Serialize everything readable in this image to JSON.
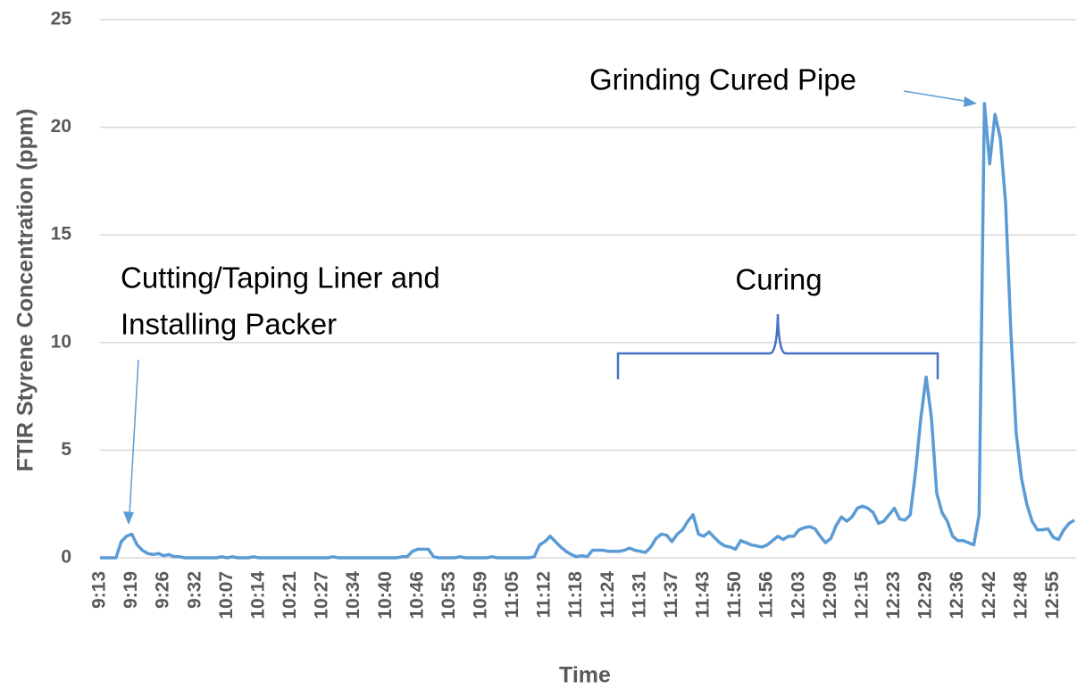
{
  "chart_data": {
    "type": "line",
    "x_label": "Time",
    "y_label": "FTIR Styrene Concentration (ppm)",
    "annotations": [
      "Grinding Cured Pipe",
      "Curing",
      "Cutting/Taping Liner and",
      "Installing Packer"
    ],
    "color": "#5b9bd5",
    "grid": true,
    "ylim": [
      0,
      25
    ],
    "yticks": [
      0,
      5,
      10,
      15,
      20,
      25
    ],
    "categories": [
      "9:13",
      null,
      null,
      null,
      null,
      null,
      "9:19",
      null,
      null,
      null,
      null,
      null,
      "9:26",
      null,
      null,
      null,
      null,
      null,
      "9:32",
      null,
      null,
      null,
      null,
      null,
      "10:07",
      null,
      null,
      null,
      null,
      null,
      "10:14",
      null,
      null,
      null,
      null,
      null,
      "10:21",
      null,
      null,
      null,
      null,
      null,
      "10:27",
      null,
      null,
      null,
      null,
      null,
      "10:34",
      null,
      null,
      null,
      null,
      null,
      "10:40",
      null,
      null,
      null,
      null,
      null,
      "10:46",
      null,
      null,
      null,
      null,
      null,
      "10:53",
      null,
      null,
      null,
      null,
      null,
      "10:59",
      null,
      null,
      null,
      null,
      null,
      "11:05",
      null,
      null,
      null,
      null,
      null,
      "11:12",
      null,
      null,
      null,
      null,
      null,
      "11:18",
      null,
      null,
      null,
      null,
      null,
      "11:24",
      null,
      null,
      null,
      null,
      null,
      "11:31",
      null,
      null,
      null,
      null,
      null,
      "11:37",
      null,
      null,
      null,
      null,
      null,
      "11:43",
      null,
      null,
      null,
      null,
      null,
      "11:50",
      null,
      null,
      null,
      null,
      null,
      "11:56",
      null,
      null,
      null,
      null,
      null,
      "12:03",
      null,
      null,
      null,
      null,
      null,
      "12:09",
      null,
      null,
      null,
      null,
      null,
      "12:15",
      null,
      null,
      null,
      null,
      null,
      "12:23",
      null,
      null,
      null,
      null,
      null,
      "12:29",
      null,
      null,
      null,
      null,
      null,
      "12:36",
      null,
      null,
      null,
      null,
      null,
      "12:42",
      null,
      null,
      null,
      null,
      null,
      "12:48",
      null,
      null,
      null,
      null,
      null,
      "12:55",
      null,
      null,
      null,
      null
    ],
    "values": [
      0,
      0,
      0,
      0,
      0.75,
      1.0,
      1.1,
      0.6,
      0.35,
      0.2,
      0.15,
      0.2,
      0.1,
      0.15,
      0.05,
      0.05,
      0,
      0,
      0,
      0,
      0,
      0,
      0,
      0.05,
      0,
      0.05,
      0,
      0,
      0,
      0.05,
      0,
      0,
      0,
      0,
      0,
      0,
      0,
      0,
      0,
      0,
      0,
      0,
      0,
      0,
      0.05,
      0,
      0,
      0,
      0,
      0,
      0,
      0,
      0,
      0,
      0,
      0,
      0,
      0.05,
      0.05,
      0.3,
      0.4,
      0.4,
      0.4,
      0.05,
      0,
      0,
      0,
      0,
      0.05,
      0,
      0,
      0,
      0,
      0,
      0.05,
      0,
      0,
      0,
      0,
      0,
      0,
      0,
      0.05,
      0.6,
      0.75,
      1.0,
      0.75,
      0.5,
      0.3,
      0.15,
      0.05,
      0.1,
      0.05,
      0.35,
      0.35,
      0.35,
      0.3,
      0.3,
      0.3,
      0.35,
      0.45,
      0.35,
      0.3,
      0.25,
      0.5,
      0.9,
      1.1,
      1.05,
      0.75,
      1.1,
      1.3,
      1.7,
      2.0,
      1.1,
      1.0,
      1.2,
      0.95,
      0.7,
      0.55,
      0.5,
      0.4,
      0.8,
      0.7,
      0.6,
      0.55,
      0.5,
      0.6,
      0.8,
      1.0,
      0.85,
      1.0,
      1.0,
      1.3,
      1.4,
      1.45,
      1.35,
      1.0,
      0.7,
      0.9,
      1.5,
      1.9,
      1.7,
      1.9,
      2.3,
      2.4,
      2.3,
      2.1,
      1.6,
      1.7,
      2.0,
      2.3,
      1.8,
      1.75,
      2.0,
      4.0,
      6.5,
      8.4,
      6.5,
      3.0,
      2.1,
      1.7,
      1.0,
      0.8,
      0.8,
      0.7,
      0.6,
      2.0,
      21.1,
      18.3,
      20.6,
      19.5,
      16.5,
      10.5,
      5.8,
      3.7,
      2.5,
      1.7,
      1.3,
      1.3,
      1.35,
      0.95,
      0.85,
      1.3,
      1.6,
      1.75
    ]
  }
}
